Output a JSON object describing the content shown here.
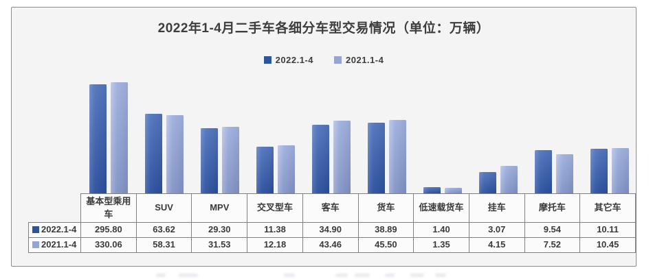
{
  "title": "2022年1-4月二手车各细分车型交易情况（单位：万辆）",
  "legend": {
    "items": [
      {
        "label": "2022.1-4",
        "color": "#2e5596"
      },
      {
        "label": "2021.1-4",
        "color": "#95a5d2"
      }
    ]
  },
  "chart_data": {
    "type": "bar",
    "title": "2022年1-4月二手车各细分车型交易情况（单位：万辆）",
    "unit": "万辆",
    "categories": [
      "基本型乘用车",
      "SUV",
      "MPV",
      "交叉型车",
      "客车",
      "货车",
      "低速载货车",
      "挂车",
      "摩托车",
      "其它车"
    ],
    "series": [
      {
        "name": "2022.1-4",
        "color": "#2e5596",
        "values": [
          295.8,
          63.62,
          29.3,
          11.38,
          34.9,
          38.89,
          1.4,
          3.07,
          9.54,
          10.11
        ]
      },
      {
        "name": "2021.1-4",
        "color": "#95a5d2",
        "values": [
          330.06,
          58.31,
          31.53,
          12.18,
          43.46,
          45.5,
          1.35,
          4.15,
          7.52,
          10.45
        ]
      }
    ],
    "xlabel": "",
    "ylabel": "",
    "y_scale": "log",
    "grid": false,
    "legend_position": "top",
    "axis_labels_visible": false,
    "table_below_chart": true
  },
  "colors": {
    "card_background": "#f4f4f5",
    "card_border": "#8c8c8c",
    "text": "#3d3d3d",
    "table_border": "#7f7f7f",
    "series_dark": "#2e5596",
    "series_light": "#95a5d2"
  }
}
